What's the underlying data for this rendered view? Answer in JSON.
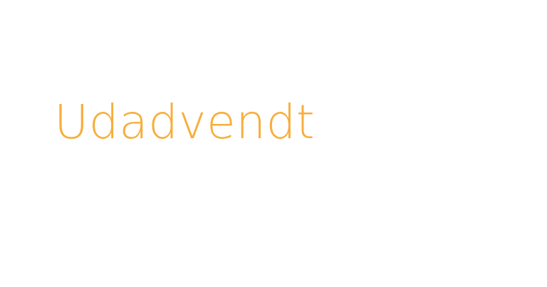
{
  "hero": {
    "heading": "Udadvendt",
    "color": "#f7ae3b"
  }
}
